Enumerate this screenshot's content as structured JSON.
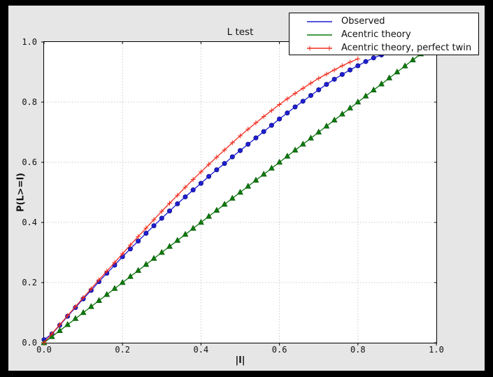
{
  "window": {
    "background": "#000000",
    "figure_background": "#e6e6e6",
    "plot_background": "#ffffff"
  },
  "chart_data": {
    "type": "line",
    "title": "L test",
    "xlabel": "|l|",
    "ylabel": "P(L>=l)",
    "xlim": [
      0.0,
      1.0
    ],
    "ylim": [
      0.0,
      1.0
    ],
    "grid": true,
    "grid_color": "#c8c8c8",
    "tick_values": [
      0.0,
      0.2,
      0.4,
      0.6,
      0.8,
      1.0
    ],
    "xtick_labels": [
      "0.0",
      "0.2",
      "0.4",
      "0.6",
      "0.8",
      "1.0"
    ],
    "ytick_labels": [
      "0.0",
      "0.2",
      "0.4",
      "0.6",
      "0.8",
      "1.0"
    ],
    "legend": {
      "position": "upper right"
    },
    "series": [
      {
        "name": "Observed",
        "color": "#1a1ad8",
        "marker": "circle",
        "marker_fill": "#1f1fd2",
        "marker_edge": "#00006e",
        "legend_marker": false,
        "x": [
          0.0,
          0.02,
          0.04,
          0.06,
          0.08,
          0.1,
          0.12,
          0.14,
          0.16,
          0.18,
          0.2,
          0.22,
          0.24,
          0.26,
          0.28,
          0.3,
          0.32,
          0.34,
          0.36,
          0.38,
          0.4,
          0.42,
          0.44,
          0.46,
          0.48,
          0.5,
          0.52,
          0.54,
          0.56,
          0.58,
          0.6,
          0.62,
          0.64,
          0.66,
          0.68,
          0.7,
          0.72,
          0.74,
          0.76,
          0.78,
          0.8,
          0.82,
          0.84,
          0.86
        ],
        "y": [
          0.01,
          0.029,
          0.058,
          0.088,
          0.117,
          0.146,
          0.174,
          0.203,
          0.231,
          0.258,
          0.286,
          0.312,
          0.338,
          0.364,
          0.389,
          0.414,
          0.438,
          0.462,
          0.485,
          0.508,
          0.53,
          0.553,
          0.575,
          0.596,
          0.618,
          0.639,
          0.66,
          0.681,
          0.702,
          0.723,
          0.744,
          0.764,
          0.784,
          0.803,
          0.822,
          0.841,
          0.859,
          0.876,
          0.892,
          0.907,
          0.921,
          0.935,
          0.947,
          0.957
        ]
      },
      {
        "name": "Acentric theory",
        "color": "#0a7a0a",
        "marker": "triangle",
        "marker_fill": "#0c7a0c",
        "marker_edge": "#024d02",
        "legend_marker": false,
        "x": [
          0.0,
          0.02,
          0.04,
          0.06,
          0.08,
          0.1,
          0.12,
          0.14,
          0.16,
          0.18,
          0.2,
          0.22,
          0.24,
          0.26,
          0.28,
          0.3,
          0.32,
          0.34,
          0.36,
          0.38,
          0.4,
          0.42,
          0.44,
          0.46,
          0.48,
          0.5,
          0.52,
          0.54,
          0.56,
          0.58,
          0.6,
          0.62,
          0.64,
          0.66,
          0.68,
          0.7,
          0.72,
          0.74,
          0.76,
          0.78,
          0.8,
          0.82,
          0.84,
          0.86,
          0.88,
          0.9,
          0.92,
          0.94,
          0.96
        ],
        "y": [
          0.0,
          0.02,
          0.04,
          0.06,
          0.08,
          0.1,
          0.12,
          0.14,
          0.16,
          0.18,
          0.2,
          0.22,
          0.24,
          0.26,
          0.28,
          0.3,
          0.32,
          0.34,
          0.36,
          0.38,
          0.4,
          0.42,
          0.44,
          0.46,
          0.48,
          0.5,
          0.52,
          0.54,
          0.56,
          0.58,
          0.6,
          0.62,
          0.64,
          0.66,
          0.68,
          0.7,
          0.72,
          0.74,
          0.76,
          0.78,
          0.8,
          0.82,
          0.84,
          0.86,
          0.88,
          0.9,
          0.92,
          0.94,
          0.96
        ]
      },
      {
        "name": "Acentric theory, perfect twin",
        "color": "#f02c1e",
        "marker": "plus",
        "marker_fill": "#f02c1e",
        "marker_edge": "#f02c1e",
        "legend_marker": true,
        "x": [
          0.0,
          0.02,
          0.04,
          0.06,
          0.08,
          0.1,
          0.12,
          0.14,
          0.16,
          0.18,
          0.2,
          0.22,
          0.24,
          0.26,
          0.28,
          0.3,
          0.32,
          0.34,
          0.36,
          0.38,
          0.4,
          0.42,
          0.44,
          0.46,
          0.48,
          0.5,
          0.52,
          0.54,
          0.56,
          0.58,
          0.6,
          0.62,
          0.64,
          0.66,
          0.68,
          0.7,
          0.72,
          0.74,
          0.76,
          0.78,
          0.8
        ],
        "y": [
          0.0,
          0.03,
          0.06,
          0.09,
          0.12,
          0.15,
          0.179,
          0.209,
          0.238,
          0.267,
          0.296,
          0.325,
          0.353,
          0.381,
          0.409,
          0.437,
          0.464,
          0.49,
          0.517,
          0.543,
          0.568,
          0.593,
          0.617,
          0.641,
          0.665,
          0.688,
          0.71,
          0.731,
          0.752,
          0.772,
          0.792,
          0.811,
          0.829,
          0.846,
          0.863,
          0.879,
          0.893,
          0.907,
          0.921,
          0.933,
          0.944
        ]
      }
    ]
  }
}
